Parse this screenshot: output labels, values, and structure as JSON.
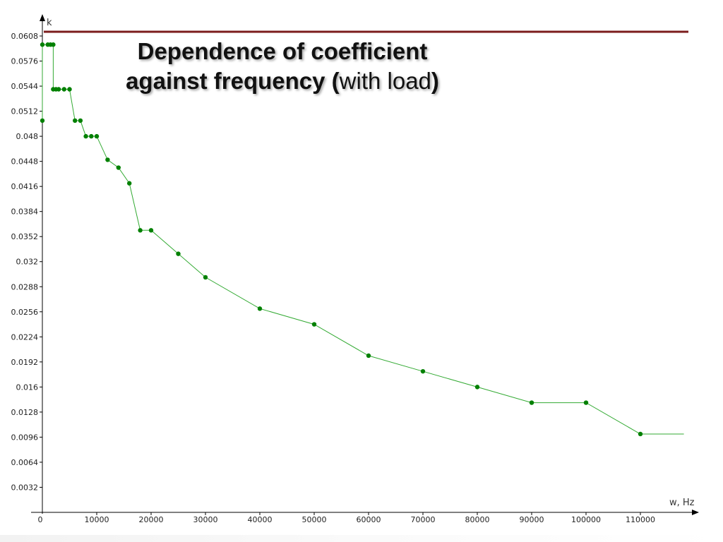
{
  "title": {
    "part1": "Dependence of  coefficient",
    "part2": "against frequency (",
    "part3": "with load",
    "part4": ")"
  },
  "colors": {
    "series": "#008000",
    "line": "#33aa33",
    "top_rule": "#7b1c1c",
    "axis": "#000000"
  },
  "chart_data": {
    "type": "line",
    "title": "Dependence of  coefficient against frequency (with load)",
    "xlabel": "w, Hz",
    "ylabel": "k",
    "xlim": [
      0,
      119000
    ],
    "ylim": [
      0,
      0.0608
    ],
    "grid": false,
    "x_ticks": [
      "0",
      "10000",
      "20000",
      "30000",
      "40000",
      "50000",
      "60000",
      "70000",
      "80000",
      "90000",
      "100000",
      "110000"
    ],
    "y_ticks": [
      "0.0032",
      "0.0064",
      "0.0096",
      "0.0128",
      "0.016",
      "0.0192",
      "0.0224",
      "0.0256",
      "0.0288",
      "0.032",
      "0.0352",
      "0.0384",
      "0.0416",
      "0.0448",
      "0.048",
      "0.0512",
      "0.0544",
      "0.0576",
      "0.0608"
    ],
    "series": [
      {
        "x": [
          0,
          0,
          1000,
          1500,
          2000,
          2000,
          2500,
          3000,
          4000,
          5000,
          6000,
          7000,
          8000,
          9000,
          10000,
          12000,
          14000,
          16000,
          18000,
          20000,
          25000,
          30000,
          40000,
          50000,
          60000,
          70000,
          80000,
          90000,
          100000,
          110000,
          118000
        ],
        "y": [
          0.05,
          0.0597,
          0.0597,
          0.0597,
          0.0597,
          0.054,
          0.054,
          0.054,
          0.054,
          0.054,
          0.05,
          0.05,
          0.048,
          0.048,
          0.048,
          0.045,
          0.044,
          0.042,
          0.036,
          0.036,
          0.033,
          0.03,
          0.026,
          0.024,
          0.02,
          0.018,
          0.016,
          0.014,
          0.014,
          0.01,
          0.01
        ],
        "markers": [
          true,
          true,
          true,
          true,
          true,
          true,
          true,
          true,
          true,
          true,
          true,
          true,
          true,
          true,
          true,
          true,
          true,
          true,
          true,
          true,
          true,
          true,
          true,
          true,
          true,
          true,
          true,
          true,
          true,
          true,
          false
        ]
      }
    ]
  }
}
